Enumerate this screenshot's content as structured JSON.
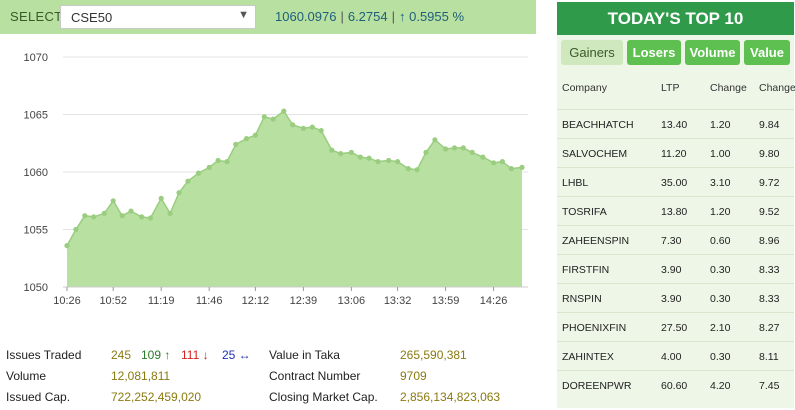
{
  "index_bar": {
    "select_label": "SELECT",
    "selected_index": "CSE50",
    "value": "1060.0976",
    "change": "6.2754",
    "change_pct": "↑ 0.5955 %"
  },
  "chart_data": {
    "type": "area",
    "fill_color": "#b8e0a0",
    "line_color": "#9acd80",
    "ylim": [
      1050,
      1070
    ],
    "y_ticks": [
      "1050",
      "1055",
      "1060",
      "1065",
      "1070"
    ],
    "x_ticks": [
      "10:26",
      "10:52",
      "11:19",
      "11:46",
      "12:12",
      "12:39",
      "13:06",
      "13:32",
      "13:59",
      "14:26"
    ],
    "x": [
      "10:26",
      "10:31",
      "10:36",
      "10:41",
      "10:47",
      "10:52",
      "10:57",
      "11:02",
      "11:08",
      "11:13",
      "11:19",
      "11:24",
      "11:29",
      "11:34",
      "11:40",
      "11:46",
      "11:51",
      "11:56",
      "12:01",
      "12:07",
      "12:12",
      "12:17",
      "12:22",
      "12:28",
      "12:33",
      "12:39",
      "12:44",
      "12:49",
      "12:55",
      "13:00",
      "13:06",
      "13:11",
      "13:16",
      "13:21",
      "13:27",
      "13:32",
      "13:38",
      "13:43",
      "13:48",
      "13:53",
      "13:59",
      "14:04",
      "14:09",
      "14:14",
      "14:20",
      "14:26",
      "14:31",
      "14:36",
      "14:42"
    ],
    "values": [
      1053.6,
      1055.0,
      1056.2,
      1056.1,
      1056.4,
      1057.5,
      1056.2,
      1056.6,
      1056.1,
      1056.0,
      1057.7,
      1056.4,
      1058.2,
      1059.2,
      1059.9,
      1060.4,
      1061.0,
      1060.9,
      1062.4,
      1062.9,
      1063.2,
      1064.8,
      1064.6,
      1065.3,
      1064.1,
      1063.8,
      1063.9,
      1063.6,
      1061.9,
      1061.6,
      1061.7,
      1061.3,
      1061.2,
      1060.9,
      1061.0,
      1060.9,
      1060.3,
      1060.2,
      1061.7,
      1062.8,
      1062.0,
      1062.1,
      1062.1,
      1061.7,
      1061.3,
      1060.8,
      1060.9,
      1060.3,
      1060.4
    ]
  },
  "market_stats": {
    "issues_traded_label": "Issues Traded",
    "issues_traded": "245",
    "advances": "109 ↑",
    "declines": "111 ↓",
    "unchanged": "25 ↔",
    "volume_label": "Volume",
    "volume": "12,081,811",
    "issued_cap_label": "Issued Cap.",
    "issued_cap": "722,252,459,020",
    "value_taka_label": "Value in Taka",
    "value_taka": "265,590,381",
    "contract_number_label": "Contract Number",
    "contract_number": "9709",
    "closing_cap_label": "Closing Market Cap.",
    "closing_cap": "2,856,134,823,063"
  },
  "top10": {
    "title": "TODAY'S TOP 10",
    "tabs": [
      "Gainers",
      "Losers",
      "Volume",
      "Value"
    ],
    "columns": [
      "Company",
      "LTP",
      "Change",
      "Change"
    ],
    "rows": [
      {
        "company": "BEACHHATCH",
        "ltp": "13.40",
        "change": "1.20",
        "change_pct": "9.84"
      },
      {
        "company": "SALVOCHEM",
        "ltp": "11.20",
        "change": "1.00",
        "change_pct": "9.80"
      },
      {
        "company": "LHBL",
        "ltp": "35.00",
        "change": "3.10",
        "change_pct": "9.72"
      },
      {
        "company": "TOSRIFA",
        "ltp": "13.80",
        "change": "1.20",
        "change_pct": "9.52"
      },
      {
        "company": "ZAHEENSPIN",
        "ltp": "7.30",
        "change": "0.60",
        "change_pct": "8.96"
      },
      {
        "company": "FIRSTFIN",
        "ltp": "3.90",
        "change": "0.30",
        "change_pct": "8.33"
      },
      {
        "company": "RNSPIN",
        "ltp": "3.90",
        "change": "0.30",
        "change_pct": "8.33"
      },
      {
        "company": "PHOENIXFIN",
        "ltp": "27.50",
        "change": "2.10",
        "change_pct": "8.27"
      },
      {
        "company": "ZAHINTEX",
        "ltp": "4.00",
        "change": "0.30",
        "change_pct": "8.11"
      },
      {
        "company": "DOREENPWR",
        "ltp": "60.60",
        "change": "4.20",
        "change_pct": "7.45"
      }
    ]
  }
}
